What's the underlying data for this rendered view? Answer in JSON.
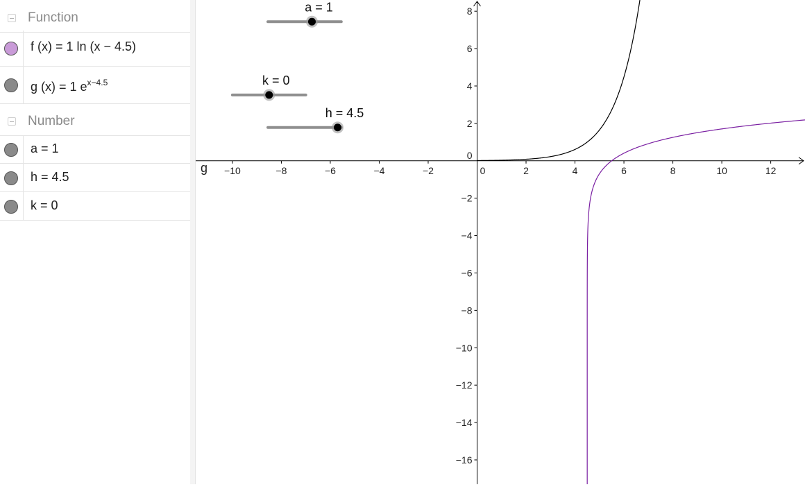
{
  "algebra": {
    "categories": [
      {
        "label": "Function",
        "items": [
          {
            "name": "f",
            "prefix": "f (x)  =  1  ln (x − 4.5)",
            "sup": "",
            "color": "#c99bd8"
          },
          {
            "name": "g",
            "prefix": "g (x)  =  1 e",
            "sup": "x−4.5",
            "color": "#8a8a8a"
          }
        ]
      },
      {
        "label": "Number",
        "items": [
          {
            "name": "a",
            "prefix": "a  =  1",
            "sup": "",
            "color": "#8a8a8a"
          },
          {
            "name": "h",
            "prefix": "h  =  4.5",
            "sup": "",
            "color": "#8a8a8a"
          },
          {
            "name": "k",
            "prefix": "k  =  0",
            "sup": "",
            "color": "#8a8a8a"
          }
        ]
      }
    ]
  },
  "graphics": {
    "x_ticks": [
      "−10",
      "−8",
      "−6",
      "−4",
      "−2",
      "0",
      "2",
      "4",
      "6",
      "8",
      "10",
      "12"
    ],
    "y_ticks": [
      "8",
      "6",
      "4",
      "2",
      "0",
      "−2",
      "−4",
      "−6",
      "−8",
      "−10",
      "−12",
      "−14",
      "−16"
    ],
    "axis_name_label": "g",
    "sliders": [
      {
        "name": "a",
        "label": "a = 1",
        "min": -5,
        "max": 5,
        "value": 1
      },
      {
        "name": "k",
        "label": "k = 0",
        "min": -5,
        "max": 5,
        "value": 0
      },
      {
        "name": "h",
        "label": "h = 4.5",
        "min": -5,
        "max": 5,
        "value": 4.5
      }
    ]
  },
  "chart_data": {
    "type": "line",
    "xlim": [
      -11.5,
      13.4
    ],
    "ylim": [
      -17.3,
      8.6
    ],
    "grid": false,
    "series": [
      {
        "name": "f",
        "expression": "1 ln(x − 4.5)",
        "color": "#7a1fa2"
      },
      {
        "name": "g",
        "expression": "1 e^(x−4.5)",
        "color": "#000000"
      }
    ]
  }
}
